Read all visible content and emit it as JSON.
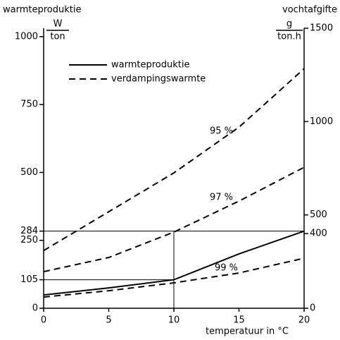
{
  "chart_data": {
    "type": "line",
    "y_title": "warmteproduktie",
    "y_unit_top": "W",
    "y_unit_bottom": "ton",
    "y2_title": "vochtafgifte",
    "y2_unit_top": "g",
    "y2_unit_bottom": "ton.h",
    "x_title": "temperatuur in °C",
    "x": [
      0,
      5,
      10,
      15,
      20
    ],
    "xlim": [
      0,
      20
    ],
    "xticks": [
      0,
      5,
      10,
      15,
      20
    ],
    "ylim": [
      0,
      1031
    ],
    "yticks": [
      0,
      105,
      250,
      284,
      500,
      750,
      1000
    ],
    "y2lim": [
      0,
      1500
    ],
    "y2ticks": [
      0,
      400,
      500,
      1000,
      1500
    ],
    "legend": [
      {
        "name": "warmteproduktie",
        "dash": false
      },
      {
        "name": "verdampingswarmte",
        "dash": true
      }
    ],
    "series": [
      {
        "name": "warmteproduktie",
        "dash": false,
        "color": "#000000",
        "values": [
          49,
          75,
          105,
          200,
          284
        ]
      },
      {
        "name": "95 %",
        "dash": true,
        "axis": "y2",
        "color": "#000000",
        "values": [
          309,
          517,
          725,
          970,
          1283
        ]
      },
      {
        "name": "97 %",
        "dash": true,
        "axis": "y2",
        "color": "#000000",
        "values": [
          196,
          272,
          408,
          574,
          755
        ]
      },
      {
        "name": "99 %",
        "dash": true,
        "axis": "y2",
        "color": "#000000",
        "values": [
          60,
          94,
          136,
          189,
          268
        ]
      }
    ]
  }
}
